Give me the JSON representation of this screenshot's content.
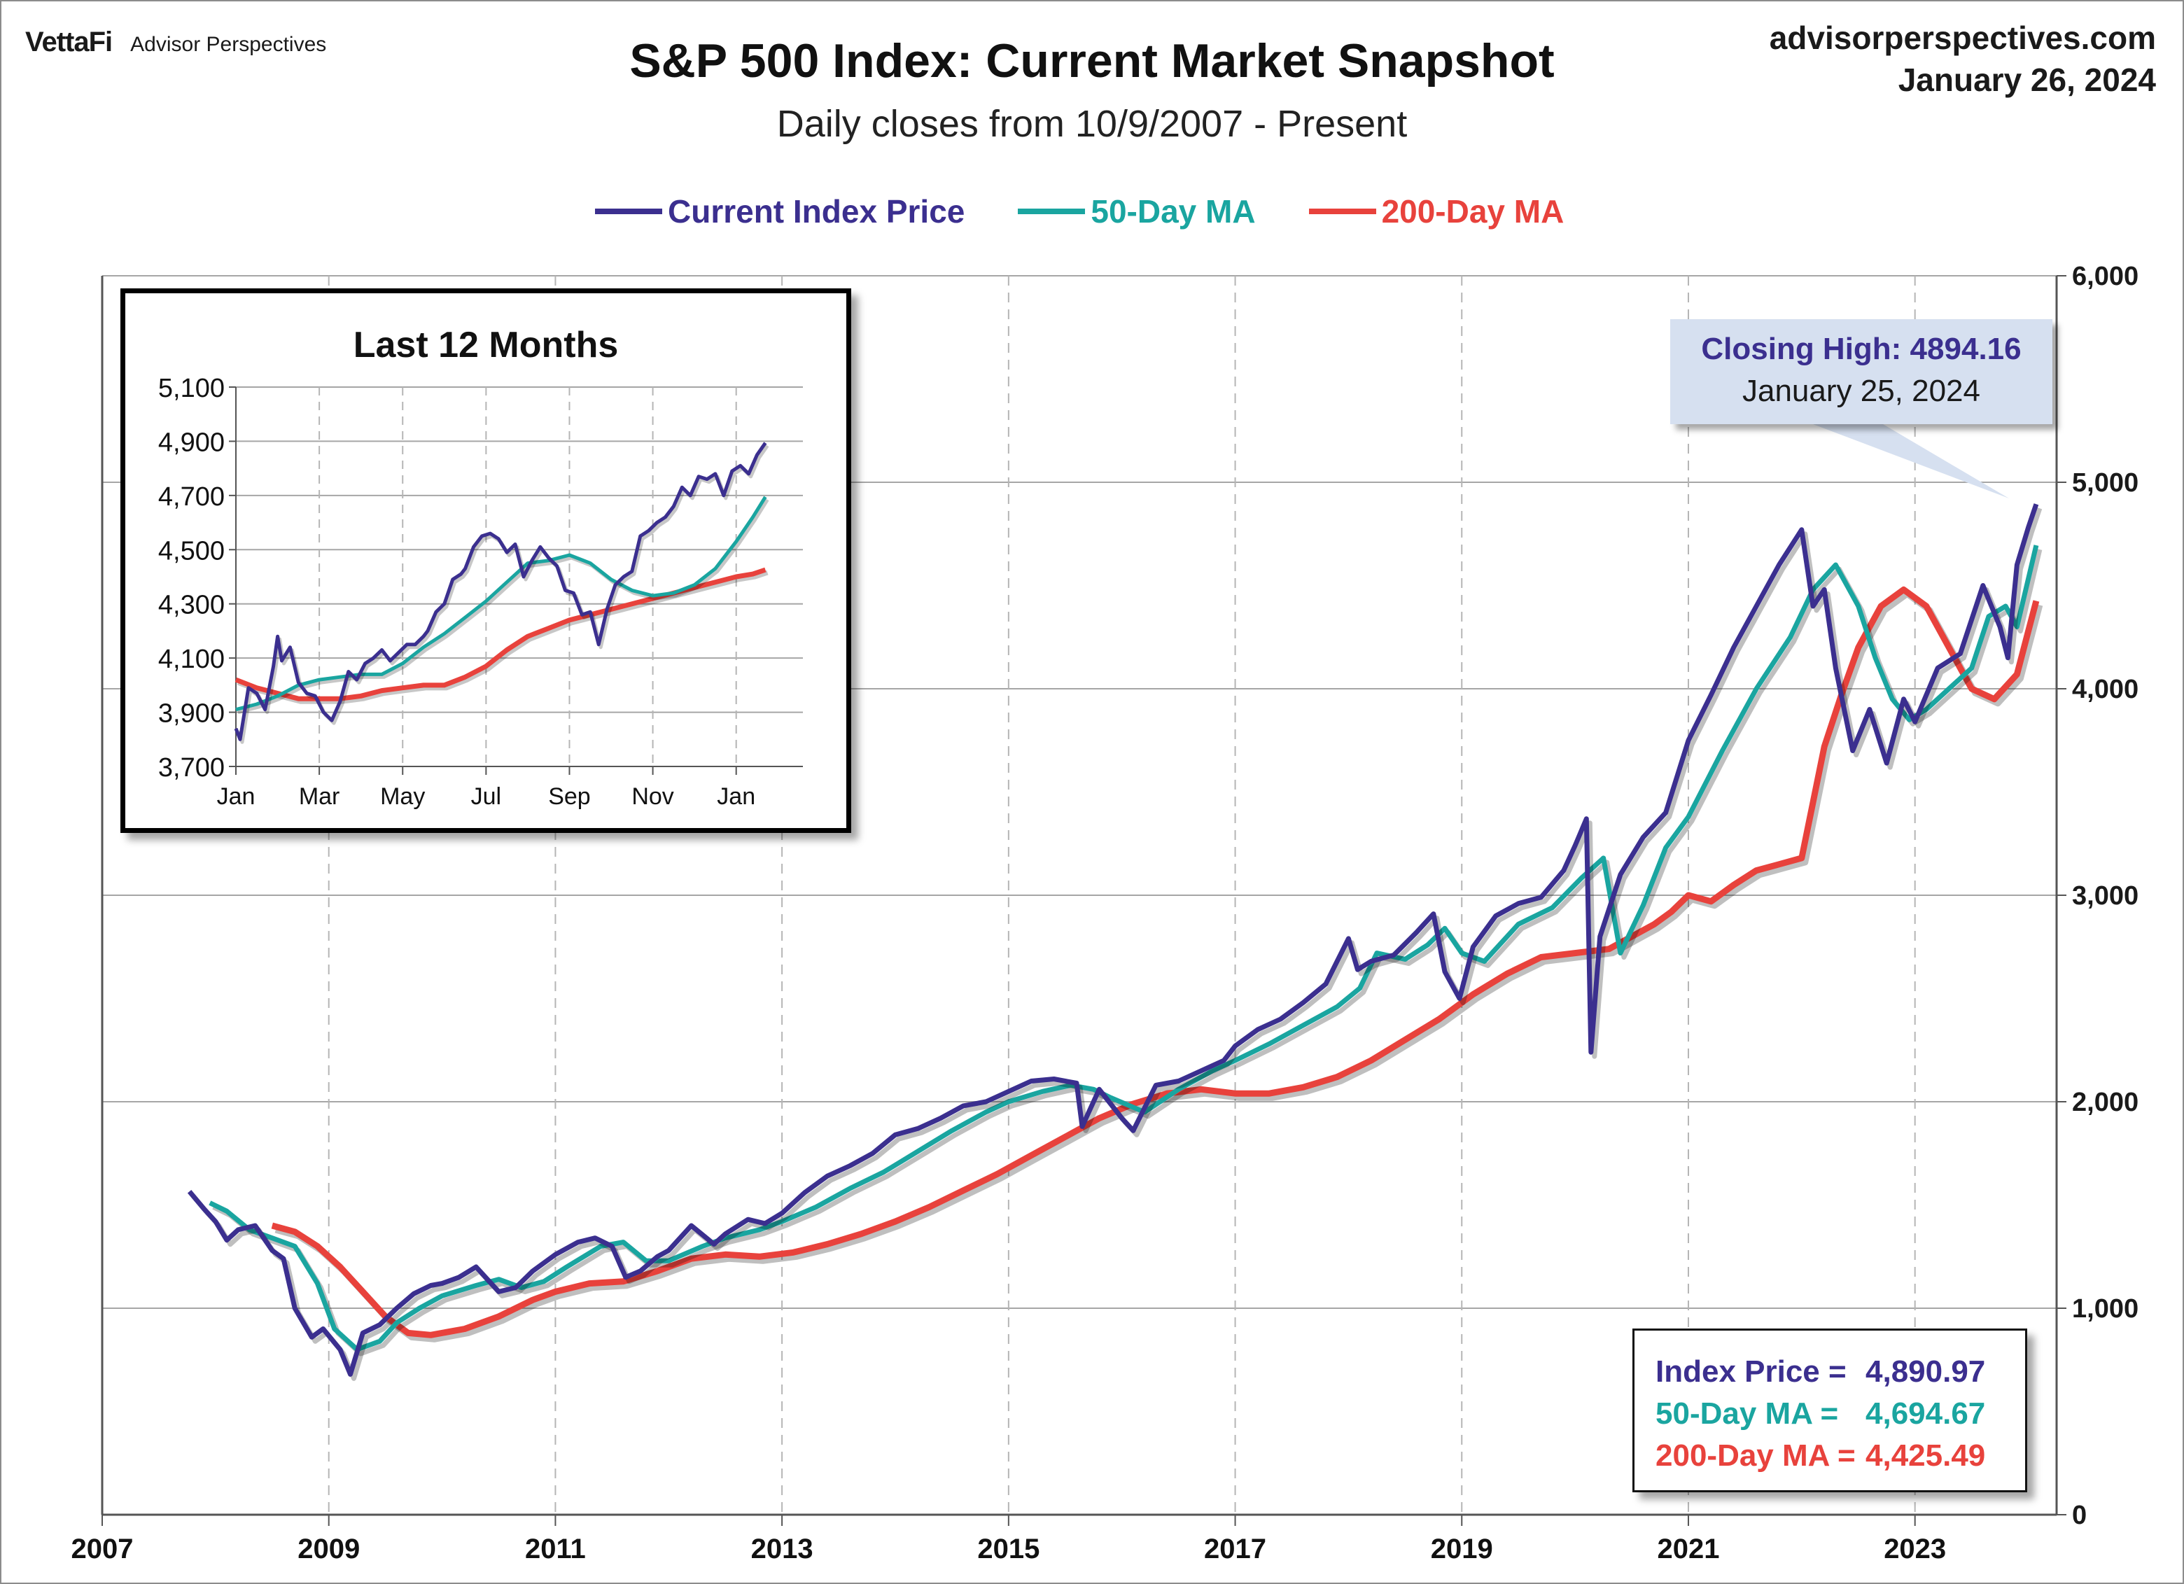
{
  "header": {
    "brand": "VettaFi",
    "brand_sub": "Advisor Perspectives",
    "site": "advisorperspectives.com",
    "date": "January 26, 2024"
  },
  "chart_data": {
    "type": "line",
    "title": "S&P 500 Index: Current Market Snapshot",
    "subtitle": "Daily closes from 10/9/2007 - Present",
    "legend_position": "top-center",
    "grid": true,
    "xlim": [
      2007,
      2024.25
    ],
    "ylim": [
      0,
      6000
    ],
    "x_ticks": [
      "2007",
      "2009",
      "2011",
      "2013",
      "2015",
      "2017",
      "2019",
      "2021",
      "2023"
    ],
    "y_ticks": [
      "0",
      "1,000",
      "2,000",
      "3,000",
      "4,000",
      "5,000",
      "6,000"
    ],
    "y_axis_side": "right",
    "colors": {
      "price": "#3b2f8f",
      "ma50": "#1aa5a0",
      "ma200": "#e8423c"
    },
    "series": [
      {
        "name": "Current Index Price",
        "key": "price",
        "x": [
          2007.77,
          2007.9,
          2008.0,
          2008.1,
          2008.2,
          2008.35,
          2008.5,
          2008.6,
          2008.7,
          2008.85,
          2008.95,
          2009.1,
          2009.19,
          2009.3,
          2009.45,
          2009.6,
          2009.75,
          2009.9,
          2010.0,
          2010.15,
          2010.3,
          2010.5,
          2010.65,
          2010.8,
          2011.0,
          2011.2,
          2011.35,
          2011.5,
          2011.62,
          2011.75,
          2011.9,
          2012.0,
          2012.2,
          2012.4,
          2012.5,
          2012.7,
          2012.85,
          2013.0,
          2013.2,
          2013.4,
          2013.6,
          2013.8,
          2014.0,
          2014.2,
          2014.4,
          2014.6,
          2014.8,
          2015.0,
          2015.2,
          2015.4,
          2015.6,
          2015.65,
          2015.8,
          2016.0,
          2016.1,
          2016.3,
          2016.5,
          2016.7,
          2016.9,
          2017.0,
          2017.2,
          2017.4,
          2017.6,
          2017.8,
          2018.0,
          2018.08,
          2018.2,
          2018.4,
          2018.6,
          2018.75,
          2018.85,
          2018.98,
          2019.1,
          2019.3,
          2019.5,
          2019.7,
          2019.9,
          2020.0,
          2020.1,
          2020.14,
          2020.22,
          2020.4,
          2020.6,
          2020.8,
          2021.0,
          2021.2,
          2021.4,
          2021.6,
          2021.8,
          2022.0,
          2022.1,
          2022.2,
          2022.3,
          2022.45,
          2022.6,
          2022.75,
          2022.9,
          2023.0,
          2023.2,
          2023.4,
          2023.6,
          2023.75,
          2023.82,
          2023.9,
          2024.0,
          2024.07
        ],
        "values": [
          1565,
          1480,
          1420,
          1330,
          1380,
          1400,
          1280,
          1240,
          1000,
          860,
          900,
          800,
          680,
          880,
          920,
          1000,
          1070,
          1110,
          1120,
          1150,
          1200,
          1080,
          1100,
          1180,
          1260,
          1320,
          1340,
          1300,
          1150,
          1180,
          1250,
          1280,
          1400,
          1310,
          1360,
          1430,
          1410,
          1460,
          1560,
          1640,
          1690,
          1750,
          1840,
          1870,
          1920,
          1980,
          2000,
          2050,
          2100,
          2110,
          2090,
          1880,
          2060,
          1920,
          1860,
          2080,
          2100,
          2150,
          2200,
          2270,
          2350,
          2400,
          2480,
          2570,
          2790,
          2640,
          2680,
          2710,
          2820,
          2910,
          2630,
          2500,
          2750,
          2900,
          2960,
          2990,
          3120,
          3240,
          3370,
          2240,
          2800,
          3100,
          3280,
          3400,
          3750,
          3970,
          4200,
          4400,
          4600,
          4770,
          4400,
          4480,
          4100,
          3700,
          3900,
          3640,
          3950,
          3840,
          4100,
          4170,
          4500,
          4300,
          4150,
          4600,
          4780,
          4894
        ]
      },
      {
        "name": "50-Day MA",
        "key": "ma50",
        "x": [
          2007.95,
          2008.1,
          2008.3,
          2008.5,
          2008.7,
          2008.9,
          2009.05,
          2009.25,
          2009.45,
          2009.6,
          2009.8,
          2010.0,
          2010.3,
          2010.5,
          2010.7,
          2010.9,
          2011.1,
          2011.4,
          2011.6,
          2011.8,
          2012.0,
          2012.3,
          2012.5,
          2012.8,
          2013.0,
          2013.3,
          2013.6,
          2013.9,
          2014.2,
          2014.5,
          2014.8,
          2015.0,
          2015.3,
          2015.55,
          2015.75,
          2015.9,
          2016.2,
          2016.5,
          2016.8,
          2017.0,
          2017.3,
          2017.6,
          2017.9,
          2018.1,
          2018.25,
          2018.5,
          2018.7,
          2018.85,
          2019.0,
          2019.2,
          2019.5,
          2019.8,
          2020.05,
          2020.25,
          2020.4,
          2020.6,
          2020.8,
          2021.0,
          2021.3,
          2021.6,
          2021.9,
          2022.1,
          2022.3,
          2022.5,
          2022.65,
          2022.8,
          2022.95,
          2023.1,
          2023.3,
          2023.5,
          2023.65,
          2023.8,
          2023.9,
          2024.07
        ],
        "values": [
          1510,
          1470,
          1380,
          1340,
          1300,
          1120,
          900,
          800,
          840,
          930,
          1000,
          1060,
          1110,
          1140,
          1100,
          1130,
          1200,
          1300,
          1320,
          1230,
          1230,
          1300,
          1340,
          1380,
          1420,
          1490,
          1580,
          1660,
          1760,
          1860,
          1950,
          2000,
          2050,
          2080,
          2060,
          2020,
          1950,
          2060,
          2150,
          2200,
          2280,
          2370,
          2460,
          2550,
          2720,
          2690,
          2760,
          2840,
          2720,
          2680,
          2860,
          2940,
          3080,
          3180,
          2720,
          2950,
          3230,
          3380,
          3700,
          4000,
          4250,
          4480,
          4600,
          4400,
          4150,
          3950,
          3850,
          3900,
          4000,
          4100,
          4350,
          4400,
          4300,
          4694.67
        ]
      },
      {
        "name": "200-Day MA",
        "key": "ma200",
        "x": [
          2008.5,
          2008.7,
          2008.9,
          2009.1,
          2009.3,
          2009.5,
          2009.7,
          2009.9,
          2010.2,
          2010.5,
          2010.8,
          2011.0,
          2011.3,
          2011.6,
          2011.9,
          2012.2,
          2012.5,
          2012.8,
          2013.1,
          2013.4,
          2013.7,
          2014.0,
          2014.3,
          2014.6,
          2014.9,
          2015.2,
          2015.5,
          2015.8,
          2016.1,
          2016.4,
          2016.7,
          2017.0,
          2017.3,
          2017.6,
          2017.9,
          2018.2,
          2018.5,
          2018.8,
          2019.1,
          2019.4,
          2019.7,
          2020.0,
          2020.3,
          2020.5,
          2020.7,
          2020.85,
          2021.0,
          2021.2,
          2021.4,
          2021.6,
          2021.8,
          2022.0,
          2022.1,
          2022.2,
          2022.35,
          2022.5,
          2022.7,
          2022.9,
          2023.1,
          2023.3,
          2023.5,
          2023.7,
          2023.9,
          2024.07
        ],
        "values": [
          1400,
          1370,
          1300,
          1200,
          1080,
          960,
          880,
          870,
          900,
          960,
          1040,
          1080,
          1120,
          1130,
          1180,
          1240,
          1260,
          1250,
          1270,
          1310,
          1360,
          1420,
          1490,
          1570,
          1650,
          1740,
          1830,
          1920,
          1990,
          2040,
          2060,
          2040,
          2040,
          2070,
          2120,
          2200,
          2300,
          2400,
          2520,
          2620,
          2700,
          2720,
          2740,
          2800,
          2860,
          2920,
          3000,
          2970,
          3050,
          3120,
          3150,
          3180,
          3450,
          3720,
          3970,
          4200,
          4400,
          4480,
          4400,
          4200,
          4000,
          3950,
          4070,
          4425.49
        ]
      }
    ]
  },
  "inset": {
    "title": "Last 12 Months",
    "ylim": [
      3700,
      5100
    ],
    "y_ticks": [
      "5,100",
      "4,900",
      "4,700",
      "4,500",
      "4,300",
      "4,100",
      "3,900",
      "3,700"
    ],
    "x_ticks": [
      "Jan",
      "Mar",
      "May",
      "Jul",
      "Sep",
      "Nov",
      "Jan"
    ],
    "series": [
      {
        "name": "Current Index Price",
        "key": "price",
        "x": [
          0.0,
          0.1,
          0.3,
          0.5,
          0.7,
          0.9,
          1.0,
          1.1,
          1.3,
          1.5,
          1.7,
          1.9,
          2.1,
          2.3,
          2.5,
          2.7,
          2.9,
          3.1,
          3.3,
          3.5,
          3.7,
          3.9,
          4.1,
          4.3,
          4.5,
          4.6,
          4.8,
          5.0,
          5.2,
          5.4,
          5.5,
          5.7,
          5.9,
          6.1,
          6.3,
          6.5,
          6.7,
          6.9,
          7.1,
          7.3,
          7.5,
          7.7,
          7.9,
          8.1,
          8.3,
          8.5,
          8.7,
          8.9,
          9.1,
          9.3,
          9.5,
          9.7,
          9.9,
          10.1,
          10.3,
          10.5,
          10.7,
          10.9,
          11.1,
          11.3,
          11.5,
          11.7,
          11.9,
          12.1,
          12.3,
          12.5,
          12.7
        ],
        "values": [
          3840,
          3800,
          3990,
          3970,
          3910,
          4070,
          4180,
          4090,
          4140,
          4010,
          3970,
          3960,
          3900,
          3870,
          3940,
          4050,
          4020,
          4080,
          4100,
          4130,
          4090,
          4120,
          4150,
          4150,
          4180,
          4200,
          4270,
          4300,
          4390,
          4410,
          4430,
          4510,
          4550,
          4560,
          4540,
          4490,
          4520,
          4400,
          4460,
          4510,
          4470,
          4440,
          4350,
          4340,
          4260,
          4270,
          4150,
          4280,
          4370,
          4400,
          4420,
          4550,
          4570,
          4600,
          4620,
          4660,
          4730,
          4700,
          4770,
          4760,
          4780,
          4700,
          4790,
          4810,
          4780,
          4850,
          4894
        ]
      },
      {
        "name": "50-Day MA",
        "key": "ma50",
        "x": [
          0.0,
          0.5,
          1.0,
          1.5,
          2.0,
          2.5,
          3.0,
          3.5,
          4.0,
          4.5,
          5.0,
          5.5,
          6.0,
          6.5,
          7.0,
          7.5,
          8.0,
          8.5,
          9.0,
          9.5,
          10.0,
          10.5,
          11.0,
          11.5,
          12.0,
          12.4,
          12.7
        ],
        "values": [
          3910,
          3930,
          3960,
          4000,
          4020,
          4030,
          4040,
          4040,
          4080,
          4140,
          4190,
          4250,
          4310,
          4380,
          4450,
          4460,
          4480,
          4450,
          4390,
          4350,
          4330,
          4340,
          4370,
          4430,
          4530,
          4620,
          4694.67
        ]
      },
      {
        "name": "200-Day MA",
        "key": "ma200",
        "x": [
          0.0,
          0.5,
          1.0,
          1.5,
          2.0,
          2.5,
          3.0,
          3.5,
          4.0,
          4.5,
          5.0,
          5.5,
          6.0,
          6.5,
          7.0,
          7.5,
          8.0,
          8.5,
          9.0,
          9.5,
          10.0,
          10.5,
          11.0,
          11.5,
          12.0,
          12.4,
          12.7
        ],
        "values": [
          4020,
          3990,
          3970,
          3950,
          3950,
          3950,
          3960,
          3980,
          3990,
          4000,
          4000,
          4030,
          4070,
          4130,
          4180,
          4210,
          4240,
          4260,
          4280,
          4300,
          4320,
          4340,
          4360,
          4380,
          4400,
          4410,
          4425.49
        ]
      }
    ]
  },
  "callout": {
    "line1": "Closing High: 4894.16",
    "line2": "January 25, 2024"
  },
  "stats": {
    "price_label": "Index Price =",
    "price_value": "4,890.97",
    "ma50_label": "50-Day MA =",
    "ma50_value": "4,694.67",
    "ma200_label": "200-Day MA =",
    "ma200_value": "4,425.49"
  }
}
